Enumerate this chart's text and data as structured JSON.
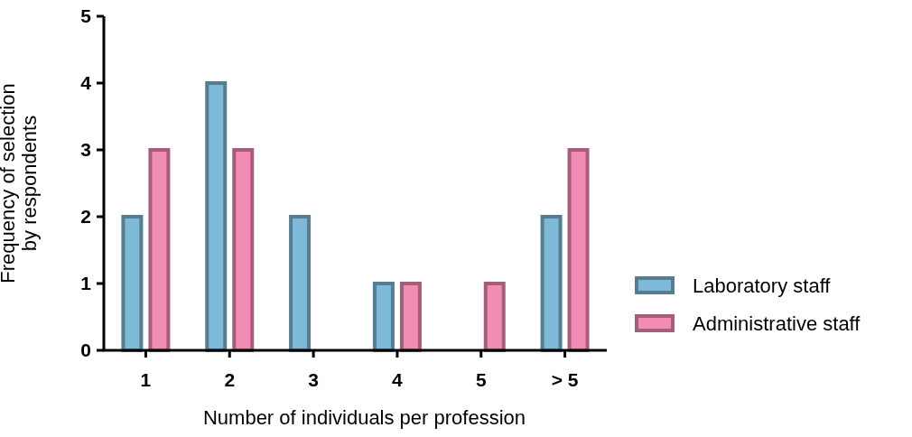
{
  "chart_data": {
    "type": "bar",
    "xlabel": "Number of individuals per profession",
    "ylabel": "Frequency of selection\nby respondents",
    "categories": [
      "1",
      "2",
      "3",
      "4",
      "5",
      "> 5"
    ],
    "series": [
      {
        "name": "Laboratory staff",
        "color": "#7fb9d8",
        "values": [
          2,
          4,
          2,
          1,
          0,
          2
        ]
      },
      {
        "name": "Administrative staff",
        "color": "#f28cb5",
        "values": [
          3,
          3,
          0,
          1,
          1,
          3
        ]
      }
    ],
    "ylim": [
      0,
      5
    ],
    "yticks": [
      0,
      1,
      2,
      3,
      4,
      5
    ],
    "grid": false,
    "legend": "right"
  }
}
